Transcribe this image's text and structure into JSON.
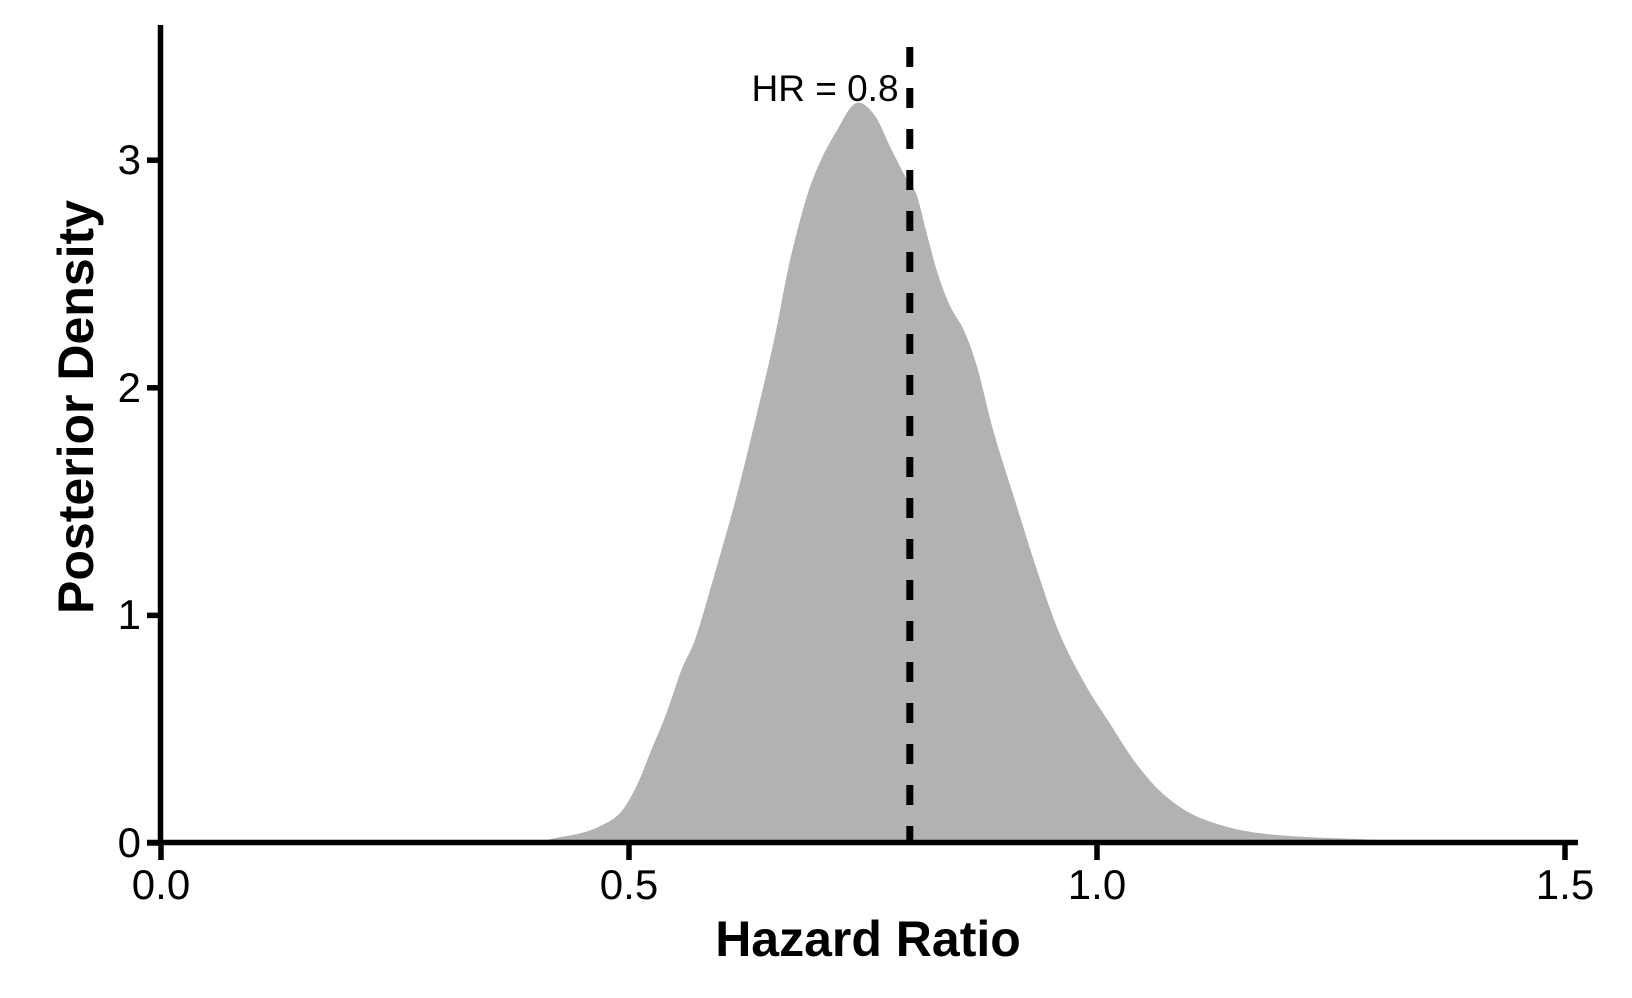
{
  "chart_data": {
    "type": "area",
    "title": "",
    "xlabel": "Hazard Ratio",
    "ylabel": "Posterior Density",
    "annotation": {
      "text": "HR = 0.8",
      "x": 0.8
    },
    "reference_line": {
      "x": 0.8,
      "style": "dashed",
      "color": "#000000"
    },
    "x_ticks": {
      "values": [
        0,
        0.5,
        1.0,
        1.5
      ],
      "labels": [
        "0.0",
        "0.5",
        "1.0",
        "1.5"
      ]
    },
    "y_ticks": {
      "values": [
        0,
        1,
        2,
        3
      ],
      "labels": [
        "0",
        "1",
        "2",
        "3"
      ]
    },
    "xlim": [
      0,
      1.52
    ],
    "ylim": [
      0,
      3.59
    ],
    "grid": "off",
    "legend": "none",
    "fill_color": "#b2b2b2",
    "axis_color": "#000000",
    "density": {
      "x": [
        0.4,
        0.42,
        0.445,
        0.467,
        0.49,
        0.508,
        0.523,
        0.54,
        0.556,
        0.571,
        0.59,
        0.614,
        0.635,
        0.655,
        0.672,
        0.69,
        0.705,
        0.722,
        0.742,
        0.762,
        0.78,
        0.795,
        0.807,
        0.818,
        0.83,
        0.843,
        0.858,
        0.872,
        0.89,
        0.912,
        0.935,
        0.96,
        0.987,
        1.013,
        1.04,
        1.067,
        1.1,
        1.14,
        1.18,
        1.23,
        1.29,
        1.36
      ],
      "y": [
        0.0,
        0.02,
        0.04,
        0.07,
        0.13,
        0.25,
        0.4,
        0.57,
        0.76,
        0.9,
        1.16,
        1.51,
        1.86,
        2.21,
        2.56,
        2.84,
        3.0,
        3.13,
        3.25,
        3.2,
        3.05,
        2.93,
        2.85,
        2.68,
        2.5,
        2.36,
        2.25,
        2.09,
        1.8,
        1.51,
        1.21,
        0.92,
        0.7,
        0.53,
        0.36,
        0.23,
        0.13,
        0.07,
        0.04,
        0.025,
        0.015,
        0.0
      ],
      "peak": {
        "x": 0.742,
        "y": 3.25
      }
    }
  }
}
